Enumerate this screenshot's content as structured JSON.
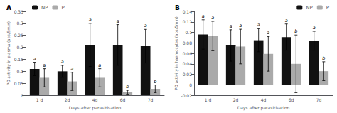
{
  "chart_data": [
    {
      "type": "bar",
      "title": "A",
      "ylabel": "PO activity in plasma (abs/5min)",
      "xlabel": "Days after parasitisation",
      "categories": [
        "1 d",
        "2d",
        "4d",
        "6d",
        "7d"
      ],
      "series": [
        {
          "name": "NP",
          "color": "#111111",
          "values": [
            0.11,
            0.1,
            0.21,
            0.21,
            0.205
          ],
          "errors": [
            0.028,
            0.025,
            0.09,
            0.085,
            0.07
          ],
          "annotations": [
            "a",
            "a",
            "a",
            "a",
            "a"
          ]
        },
        {
          "name": "P",
          "color": "#aaaaaa",
          "values": [
            0.073,
            0.058,
            0.073,
            0.013,
            0.027
          ],
          "errors": [
            0.038,
            0.038,
            0.038,
            0.008,
            0.016
          ],
          "annotations": [
            "a",
            "a",
            "a",
            "b",
            "b"
          ]
        }
      ],
      "ylim": [
        0,
        0.35
      ],
      "yticks": [
        0,
        0.05,
        0.1,
        0.15,
        0.2,
        0.25,
        0.3,
        0.35
      ],
      "grid": false,
      "legend": "upper left"
    },
    {
      "type": "bar",
      "title": "B",
      "ylabel": "PO activity in haemocytes (abs/5min)",
      "xlabel": "Days after parasitisation",
      "categories": [
        "1 d",
        "2d",
        "4d",
        "6d",
        "7d"
      ],
      "series": [
        {
          "name": "NP",
          "color": "#111111",
          "values": [
            0.096,
            0.075,
            0.085,
            0.091,
            0.084
          ],
          "errors": [
            0.028,
            0.03,
            0.022,
            0.025,
            0.018
          ],
          "annotations": [
            "a",
            "a",
            "a",
            "a",
            "a"
          ]
        },
        {
          "name": "P",
          "color": "#aaaaaa",
          "values": [
            0.093,
            0.073,
            0.059,
            0.04,
            0.026
          ],
          "errors": [
            0.028,
            0.033,
            0.033,
            0.055,
            0.018
          ],
          "annotations": [
            "a",
            "a",
            "a",
            "b",
            "b"
          ]
        }
      ],
      "ylim": [
        -0.02,
        0.14
      ],
      "yticks": [
        -0.02,
        0,
        0.02,
        0.04,
        0.06,
        0.08,
        0.1,
        0.12,
        0.14
      ],
      "grid": false,
      "legend": "upper right"
    }
  ]
}
